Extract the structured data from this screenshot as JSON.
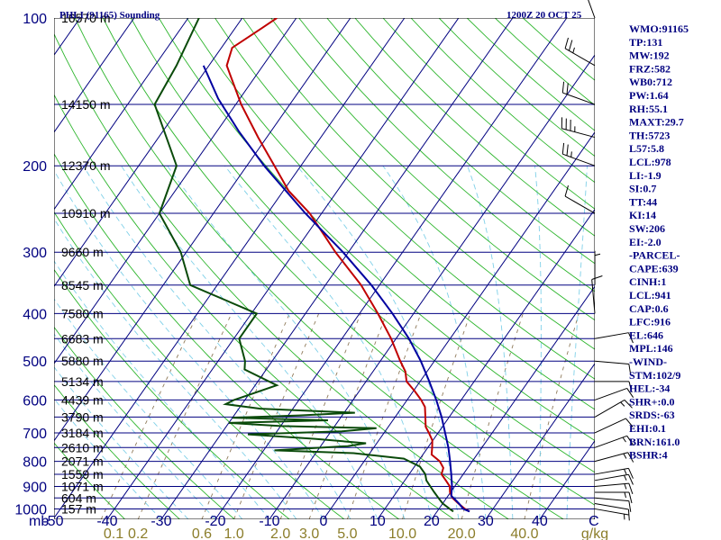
{
  "header": {
    "station": "PHLI (91165) Sounding",
    "time": "1200Z 20 OCT 25"
  },
  "colors": {
    "isobar": "#000080",
    "skewT": "#000080",
    "dryAdiabat": "#2cb52c",
    "moistAdiabat": "#7fd0e8",
    "mixingRatio": "#8f7a5a",
    "temperature": "#c00000",
    "dewpoint": "#0a4a0a",
    "parcel": "#0000a0",
    "wind": "#000000",
    "text": "#000080"
  },
  "axes": {
    "pressure_unit_label": "mb",
    "mixing_ratio_unit_label": "g/kg",
    "temperature_ticks": [
      "-50",
      "-40",
      "-30",
      "-20",
      "-10",
      "0",
      "10",
      "20",
      "30",
      "40",
      "C"
    ],
    "mixing_ratio_ticks": [
      "0.1",
      "0.2",
      "0.6",
      "1.0",
      "2.0",
      "3.0",
      "5.0",
      "10.0",
      "20.0",
      "40.0"
    ]
  },
  "chart_data": {
    "type": "line",
    "title": "PHLI (91165) Sounding",
    "subtitle": "1200Z 20 OCT 25",
    "xlabel": "",
    "ylabel": "mb",
    "pressure_axis": "log",
    "ylim": [
      1000,
      100
    ],
    "xlim": [
      -50,
      50
    ],
    "grid": true,
    "pressure_levels": [
      {
        "p": 100,
        "height": "16570 m"
      },
      {
        "p": 150,
        "height": "14150 m"
      },
      {
        "p": 200,
        "height": "12370 m"
      },
      {
        "p": 250,
        "height": "10910 m"
      },
      {
        "p": 300,
        "height": "9660 m"
      },
      {
        "p": 350,
        "height": "8545 m"
      },
      {
        "p": 400,
        "height": "7580 m"
      },
      {
        "p": 450,
        "height": "6683 m"
      },
      {
        "p": 500,
        "height": "5880 m"
      },
      {
        "p": 550,
        "height": "5134 m"
      },
      {
        "p": 600,
        "height": "4439 m"
      },
      {
        "p": 650,
        "height": "3790 m"
      },
      {
        "p": 700,
        "height": "3184 m"
      },
      {
        "p": 750,
        "height": "2610 m"
      },
      {
        "p": 800,
        "height": "2071 m"
      },
      {
        "p": 850,
        "height": "1559 m"
      },
      {
        "p": 900,
        "height": "1071 m"
      },
      {
        "p": 950,
        "height": "604 m"
      },
      {
        "p": 1000,
        "height": "157 m"
      }
    ],
    "pressure_tick_labels": [
      "100",
      "200",
      "300",
      "400",
      "500",
      "600",
      "700",
      "800",
      "900",
      "1000"
    ],
    "series": [
      {
        "name": "Temperature",
        "points": [
          [
            1012,
            26.0
          ],
          [
            1000,
            24.8
          ],
          [
            975,
            22.9
          ],
          [
            950,
            21.1
          ],
          [
            925,
            19.9
          ],
          [
            900,
            19.1
          ],
          [
            875,
            17.6
          ],
          [
            850,
            16.0
          ],
          [
            825,
            15.5
          ],
          [
            800,
            14.0
          ],
          [
            775,
            11.6
          ],
          [
            750,
            10.8
          ],
          [
            725,
            9.9
          ],
          [
            700,
            8.3
          ],
          [
            680,
            6.9
          ],
          [
            650,
            5.6
          ],
          [
            620,
            4.2
          ],
          [
            600,
            2.6
          ],
          [
            575,
            0.2
          ],
          [
            550,
            -2.5
          ],
          [
            525,
            -4.0
          ],
          [
            500,
            -6.3
          ],
          [
            450,
            -10.9
          ],
          [
            400,
            -16.6
          ],
          [
            350,
            -23.4
          ],
          [
            300,
            -32.4
          ],
          [
            250,
            -42.2
          ],
          [
            225,
            -49.0
          ],
          [
            200,
            -54.9
          ],
          [
            175,
            -61.6
          ],
          [
            150,
            -69.0
          ],
          [
            125,
            -76.7
          ],
          [
            115,
            -78.0
          ],
          [
            105,
            -75.1
          ],
          [
            100,
            -73.6
          ]
        ]
      },
      {
        "name": "Dewpoint",
        "points": [
          [
            1012,
            23.0
          ],
          [
            1000,
            22.0
          ],
          [
            975,
            20.0
          ],
          [
            950,
            18.5
          ],
          [
            925,
            17.0
          ],
          [
            900,
            15.5
          ],
          [
            875,
            14.0
          ],
          [
            850,
            13.0
          ],
          [
            820,
            11.0
          ],
          [
            790,
            7.0
          ],
          [
            770,
            -3.0
          ],
          [
            760,
            -18.0
          ],
          [
            745,
            -5.0
          ],
          [
            735,
            -2.0
          ],
          [
            720,
            -12.0
          ],
          [
            705,
            -25.0
          ],
          [
            695,
            -8.0
          ],
          [
            685,
            -2.0
          ],
          [
            678,
            -20.0
          ],
          [
            668,
            -30.0
          ],
          [
            660,
            -12.0
          ],
          [
            652,
            -30.0
          ],
          [
            645,
            -18.0
          ],
          [
            637,
            -8.0
          ],
          [
            625,
            -26.0
          ],
          [
            612,
            -33.0
          ],
          [
            600,
            -32.0
          ],
          [
            560,
            -26.0
          ],
          [
            520,
            -34.0
          ],
          [
            500,
            -35.0
          ],
          [
            450,
            -39.0
          ],
          [
            400,
            -39.0
          ],
          [
            350,
            -55.0
          ],
          [
            300,
            -61.0
          ],
          [
            250,
            -70.0
          ],
          [
            200,
            -73.0
          ],
          [
            150,
            -85.0
          ],
          [
            125,
            -86.0
          ],
          [
            100,
            -88.0
          ]
        ]
      },
      {
        "name": "Parcel",
        "points": [
          [
            1012,
            26.0
          ],
          [
            1000,
            24.5
          ],
          [
            975,
            23.0
          ],
          [
            950,
            21.3
          ],
          [
            941,
            20.6
          ],
          [
            900,
            19.5
          ],
          [
            850,
            17.8
          ],
          [
            800,
            15.9
          ],
          [
            750,
            13.8
          ],
          [
            700,
            11.3
          ],
          [
            650,
            8.6
          ],
          [
            600,
            5.4
          ],
          [
            550,
            1.7
          ],
          [
            500,
            -2.5
          ],
          [
            450,
            -7.6
          ],
          [
            400,
            -13.9
          ],
          [
            350,
            -21.5
          ],
          [
            300,
            -31.0
          ],
          [
            250,
            -43.0
          ],
          [
            200,
            -56.8
          ],
          [
            170,
            -66.0
          ],
          [
            146,
            -74.0
          ],
          [
            125,
            -81.0
          ]
        ]
      }
    ],
    "wind_barbs": [
      {
        "p": 1000,
        "dir": 100,
        "spd": 5
      },
      {
        "p": 975,
        "dir": 100,
        "spd": 10
      },
      {
        "p": 950,
        "dir": 95,
        "spd": 10
      },
      {
        "p": 925,
        "dir": 90,
        "spd": 15
      },
      {
        "p": 900,
        "dir": 85,
        "spd": 15
      },
      {
        "p": 875,
        "dir": 80,
        "spd": 15
      },
      {
        "p": 850,
        "dir": 80,
        "spd": 15
      },
      {
        "p": 800,
        "dir": 75,
        "spd": 15
      },
      {
        "p": 750,
        "dir": 70,
        "spd": 15
      },
      {
        "p": 700,
        "dir": 65,
        "spd": 10
      },
      {
        "p": 650,
        "dir": 60,
        "spd": 15
      },
      {
        "p": 600,
        "dir": 70,
        "spd": 10
      },
      {
        "p": 550,
        "dir": 90,
        "spd": 10
      },
      {
        "p": 500,
        "dir": 95,
        "spd": 10
      },
      {
        "p": 450,
        "dir": 80,
        "spd": 10
      },
      {
        "p": 400,
        "dir": 355,
        "spd": 10
      },
      {
        "p": 350,
        "dir": 0,
        "spd": 5
      },
      {
        "p": 250,
        "dir": 300,
        "spd": 10
      },
      {
        "p": 200,
        "dir": 290,
        "spd": 25
      },
      {
        "p": 175,
        "dir": 285,
        "spd": 35
      },
      {
        "p": 150,
        "dir": 290,
        "spd": 20
      },
      {
        "p": 125,
        "dir": 300,
        "spd": 25
      },
      {
        "p": 100,
        "dir": 340,
        "spd": 20
      }
    ]
  },
  "indices": [
    "WMO:91165",
    "TP:131",
    "MW:192",
    "FRZ:582",
    "WB0:712",
    "PW:1.64",
    "RH:55.1",
    "MAXT:29.7",
    "TH:5723",
    "L57:5.8",
    "LCL:978",
    "LI:-1.9",
    "SI:0.7",
    "TT:44",
    "KI:14",
    "SW:206",
    "EI:-2.0",
    "-PARCEL-",
    "CAPE:639",
    "CINH:1",
    "LCL:941",
    "CAP:0.6",
    "LFC:916",
    "EL:646",
    "MPL:146",
    "-WIND-",
    "STM:102/9",
    "HEL:-34",
    "SHR+:0.0",
    "SRDS:-63",
    "EHI:0.1",
    "BRN:161.0",
    "BSHR:4"
  ]
}
